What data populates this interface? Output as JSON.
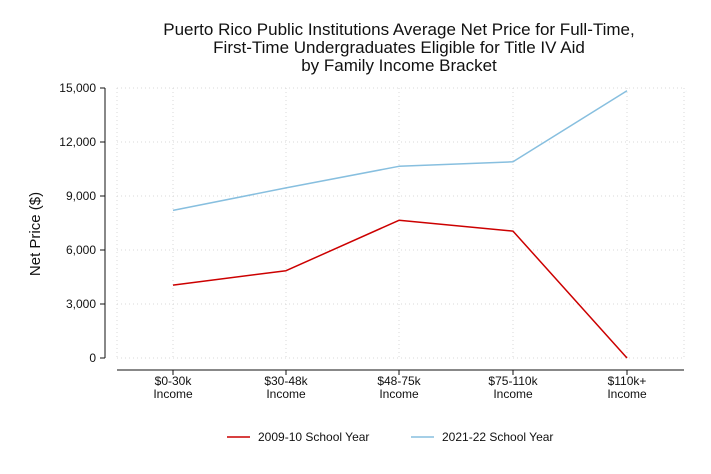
{
  "chart_data": {
    "type": "line",
    "title_lines": [
      "Puerto Rico Public Institutions Average Net Price for Full-Time,",
      "First-Time Undergraduates Eligible for Title IV Aid",
      "by Family Income Bracket"
    ],
    "ylabel": "Net Price ($)",
    "xlabel": "",
    "categories": [
      [
        "$0-30k",
        "Income"
      ],
      [
        "$30-48k",
        "Income"
      ],
      [
        "$48-75k",
        "Income"
      ],
      [
        "$75-110k",
        "Income"
      ],
      [
        "$110k+",
        "Income"
      ]
    ],
    "ylim": [
      0,
      15000
    ],
    "yticks": [
      0,
      3000,
      6000,
      9000,
      12000,
      15000
    ],
    "ytick_labels": [
      "0",
      "3,000",
      "6,000",
      "9,000",
      "12,000",
      "15,000"
    ],
    "grid": true,
    "legend_position": "bottom",
    "series": [
      {
        "name": "2009-10 School Year",
        "color": "#cc0000",
        "values": [
          4050,
          4850,
          7650,
          7050,
          0
        ]
      },
      {
        "name": "2021-22 School Year",
        "color": "#87bfdf",
        "values": [
          8200,
          9450,
          10650,
          10900,
          14850
        ]
      }
    ]
  }
}
